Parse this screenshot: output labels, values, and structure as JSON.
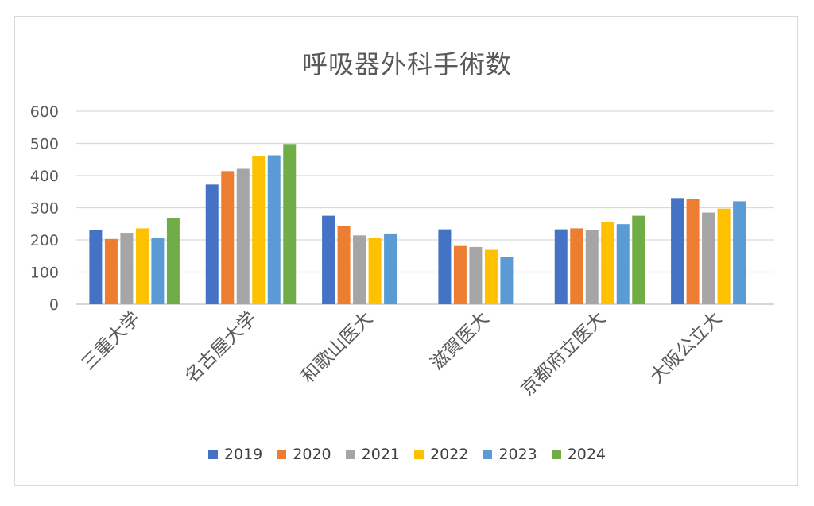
{
  "chart_data": {
    "type": "bar",
    "title": "呼吸器外科手術数",
    "categories": [
      "三重大学",
      "名古屋大学",
      "和歌山医大",
      "滋賀医大",
      "京都府立医大",
      "大阪公立大"
    ],
    "ylim": [
      0,
      600
    ],
    "yticks": [
      0,
      100,
      200,
      300,
      400,
      500,
      600
    ],
    "grid": true,
    "legend_position": "bottom",
    "series": [
      {
        "name": "2019",
        "color": "#4472c4",
        "values": [
          230,
          372,
          275,
          233,
          233,
          330
        ]
      },
      {
        "name": "2020",
        "color": "#ed7d31",
        "values": [
          203,
          414,
          242,
          181,
          236,
          327
        ]
      },
      {
        "name": "2021",
        "color": "#a5a5a5",
        "values": [
          222,
          421,
          214,
          178,
          230,
          285
        ]
      },
      {
        "name": "2022",
        "color": "#ffc000",
        "values": [
          236,
          460,
          207,
          169,
          256,
          297
        ]
      },
      {
        "name": "2023",
        "color": "#5b9bd5",
        "values": [
          206,
          463,
          220,
          146,
          249,
          320
        ]
      },
      {
        "name": "2024",
        "color": "#70ad47",
        "values": [
          268,
          498,
          null,
          null,
          275,
          null
        ]
      }
    ]
  }
}
